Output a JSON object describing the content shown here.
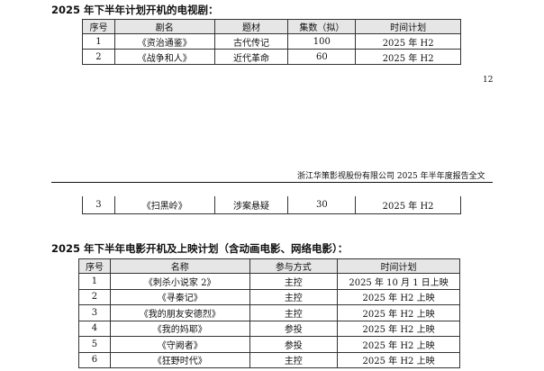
{
  "tv": {
    "title": "2025 年下半年计划开机的电视剧：",
    "headers": [
      "序号",
      "剧名",
      "题材",
      "集数（拟）",
      "时间计划"
    ],
    "rows": [
      [
        "1",
        "《资治通鉴》",
        "古代传记",
        "100",
        "2025 年 H2"
      ],
      [
        "2",
        "《战争和人》",
        "近代革命",
        "60",
        "2025 年 H2"
      ],
      [
        "3",
        "《扫黑岭》",
        "涉案悬疑",
        "30",
        "2025 年 H2"
      ]
    ]
  },
  "page_number": "12",
  "running_header": "浙江华策影视股份有限公司 2025 年半年度报告全文",
  "film": {
    "title": "2025 年下半年电影开机及上映计划（含动画电影、网络电影）：",
    "headers": [
      "序号",
      "名称",
      "参与方式",
      "时间计划"
    ],
    "rows": [
      [
        "1",
        "《刺杀小说家 2》",
        "主控",
        "2025 年 10 月 1 日上映"
      ],
      [
        "2",
        "《寻秦记》",
        "主控",
        "2025 年 H2 上映"
      ],
      [
        "3",
        "《我的朋友安德烈》",
        "主控",
        "2025 年 H2 上映"
      ],
      [
        "4",
        "《我的妈耶》",
        "参投",
        "2025 年 H2 上映"
      ],
      [
        "5",
        "《守阙者》",
        "参投",
        "2025 年 H2 上映"
      ],
      [
        "6",
        "《狂野时代》",
        "主控",
        "2025 年 H2 上映"
      ]
    ]
  }
}
